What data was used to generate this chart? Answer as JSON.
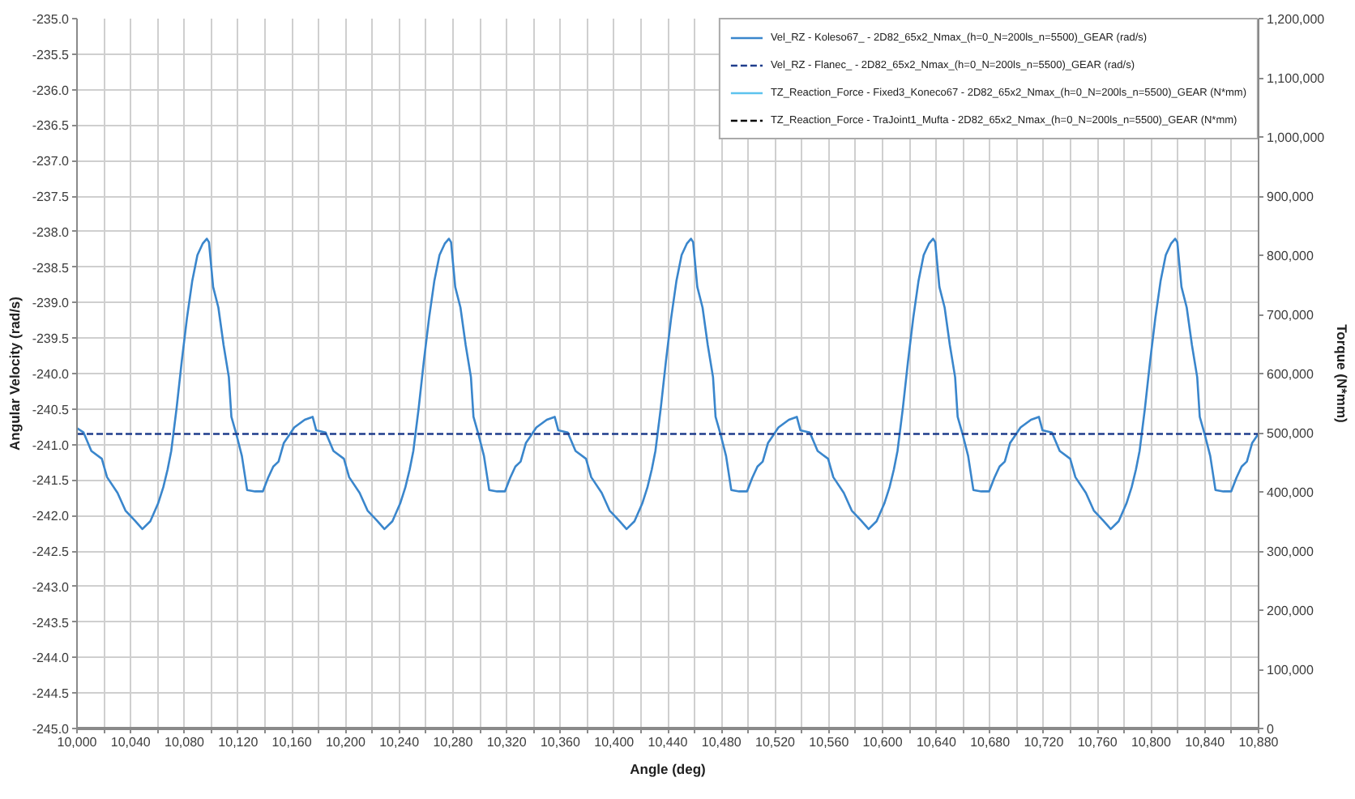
{
  "chart_data": {
    "type": "line",
    "xlabel": "Angle (deg)",
    "ylabel": "Angular Velocity (rad/s)",
    "y2label": "Torque (N*mm)",
    "xlim": [
      10000,
      10880
    ],
    "ylim": [
      -245,
      -235
    ],
    "y2lim": [
      0,
      1200000
    ],
    "xticks": [
      {
        "value": 10000,
        "label": "10,000"
      },
      {
        "value": 10020,
        "label": null
      },
      {
        "value": 10040,
        "label": "10,040"
      },
      {
        "value": 10060,
        "label": null
      },
      {
        "value": 10080,
        "label": "10,080"
      },
      {
        "value": 10100,
        "label": null
      },
      {
        "value": 10120,
        "label": "10,120"
      },
      {
        "value": 10140,
        "label": null
      },
      {
        "value": 10160,
        "label": "10,160"
      },
      {
        "value": 10180,
        "label": null
      },
      {
        "value": 10200,
        "label": "10,200"
      },
      {
        "value": 10220,
        "label": null
      },
      {
        "value": 10240,
        "label": "10,240"
      },
      {
        "value": 10260,
        "label": null
      },
      {
        "value": 10280,
        "label": "10,280"
      },
      {
        "value": 10300,
        "label": null
      },
      {
        "value": 10320,
        "label": "10,320"
      },
      {
        "value": 10340,
        "label": null
      },
      {
        "value": 10360,
        "label": "10,360"
      },
      {
        "value": 10380,
        "label": null
      },
      {
        "value": 10400,
        "label": "10,400"
      },
      {
        "value": 10420,
        "label": null
      },
      {
        "value": 10440,
        "label": "10,440"
      },
      {
        "value": 10460,
        "label": null
      },
      {
        "value": 10480,
        "label": "10,480"
      },
      {
        "value": 10500,
        "label": null
      },
      {
        "value": 10520,
        "label": "10,520"
      },
      {
        "value": 10540,
        "label": null
      },
      {
        "value": 10560,
        "label": "10,560"
      },
      {
        "value": 10580,
        "label": null
      },
      {
        "value": 10600,
        "label": "10,600"
      },
      {
        "value": 10620,
        "label": null
      },
      {
        "value": 10640,
        "label": "10,640"
      },
      {
        "value": 10660,
        "label": null
      },
      {
        "value": 10680,
        "label": "10,680"
      },
      {
        "value": 10700,
        "label": null
      },
      {
        "value": 10720,
        "label": "10,720"
      },
      {
        "value": 10740,
        "label": null
      },
      {
        "value": 10760,
        "label": "10,760"
      },
      {
        "value": 10780,
        "label": null
      },
      {
        "value": 10800,
        "label": "10,800"
      },
      {
        "value": 10820,
        "label": null
      },
      {
        "value": 10840,
        "label": "10,840"
      },
      {
        "value": 10860,
        "label": null
      },
      {
        "value": 10880,
        "label": "10,880"
      }
    ],
    "yticks": [
      {
        "value": -245,
        "label": "-245.0"
      },
      -244.5,
      {
        "value": -244,
        "label": "-244.0"
      },
      -243.5,
      {
        "value": -243,
        "label": "-243.0"
      },
      -242.5,
      {
        "value": -242,
        "label": "-242.0"
      },
      -241.5,
      {
        "value": -241,
        "label": "-241.0"
      },
      -240.5,
      {
        "value": -240,
        "label": "-240.0"
      },
      -239.5,
      {
        "value": -239,
        "label": "-239.0"
      },
      -238.5,
      {
        "value": -238,
        "label": "-238.0"
      },
      -237.5,
      {
        "value": -237,
        "label": "-237.0"
      },
      -236.5,
      {
        "value": -236,
        "label": "-236.0"
      },
      -235.5,
      {
        "value": -235,
        "label": "-235.0"
      }
    ],
    "y2ticks": [
      0,
      {
        "value": 100000,
        "label": "100,000"
      },
      {
        "value": 200000,
        "label": "200,000"
      },
      {
        "value": 300000,
        "label": "300,000"
      },
      {
        "value": 400000,
        "label": "400,000"
      },
      {
        "value": 500000,
        "label": "500,000"
      },
      {
        "value": 600000,
        "label": "600,000"
      },
      {
        "value": 700000,
        "label": "700,000"
      },
      {
        "value": 800000,
        "label": "800,000"
      },
      {
        "value": 900000,
        "label": "900,000"
      },
      {
        "value": 1000000,
        "label": "1,000,000"
      },
      {
        "value": 1100000,
        "label": "1,100,000"
      },
      {
        "value": 1200000,
        "label": "1,200,000"
      }
    ],
    "grid": true,
    "legend": "top right",
    "series": [
      {
        "name": "Vel_RZ - Koleso67_ - 2D82_65x2_Nmax_(h=0_N=200ls_n=5500)_GEAR (rad/s)",
        "color": "#3a86cc",
        "line_style": "solid",
        "x": [
          10000,
          10004.9,
          10010.7,
          10018.5,
          10022.4,
          10030.2,
          10036.1,
          10043.1,
          10048.7,
          10054.6,
          10060.4,
          10064.3,
          10067.5,
          10070.2,
          10074.1,
          10078.0,
          10081.9,
          10085.8,
          10089.7,
          10093.6,
          10096.7,
          10098.3,
          10101.4,
          10105.3,
          10109.2,
          10113.1,
          10115.0,
          10118.9,
          10122.8,
          10126.7,
          10132.6,
          10138.4,
          10142.3,
          10146.2,
          10150.1,
          10154.0,
          10157.9,
          10161.8,
          10169.6,
          10175.5,
          10178.2,
          10185.2,
          10191.0,
          10198.8,
          10202.7,
          10210.5,
          10216.4,
          10223.4,
          10229.0,
          10234.9,
          10240.7,
          10244.6,
          10247.8,
          10250.5,
          10254.4,
          10258.3,
          10262.2,
          10266.1,
          10270.0,
          10273.9,
          10277.0,
          10278.6,
          10281.7,
          10285.6,
          10289.5,
          10293.4,
          10295.3,
          10299.2,
          10303.1,
          10307.0,
          10312.9,
          10318.7,
          10322.6,
          10326.5,
          10330.4,
          10334.3,
          10338.2,
          10342.1,
          10349.9,
          10355.8,
          10358.5,
          10365.5,
          10371.3,
          10379.1,
          10383.0,
          10390.8,
          10396.7,
          10403.7,
          10409.3,
          10415.2,
          10421.0,
          10424.9,
          10428.1,
          10430.8,
          10434.7,
          10438.6,
          10442.5,
          10446.4,
          10450.3,
          10454.2,
          10457.3,
          10458.9,
          10462.0,
          10465.9,
          10469.8,
          10473.7,
          10475.6,
          10479.5,
          10483.4,
          10487.3,
          10493.2,
          10499.0,
          10502.9,
          10506.8,
          10510.7,
          10514.6,
          10518.5,
          10522.4,
          10530.2,
          10536.1,
          10538.8,
          10545.8,
          10551.6,
          10559.4,
          10563.3,
          10571.1,
          10577.0,
          10584.0,
          10589.6,
          10595.5,
          10601.3,
          10605.2,
          10608.4,
          10611.1,
          10615.0,
          10618.9,
          10622.8,
          10626.7,
          10630.6,
          10634.5,
          10637.6,
          10639.2,
          10642.3,
          10646.2,
          10650.1,
          10654.0,
          10655.9,
          10659.8,
          10663.7,
          10667.6,
          10673.5,
          10679.3,
          10683.2,
          10687.1,
          10691.0,
          10694.9,
          10698.8,
          10702.7,
          10710.5,
          10716.4,
          10719.1,
          10726.1,
          10731.9,
          10739.7,
          10743.6,
          10751.4,
          10757.3,
          10764.3,
          10769.9,
          10775.8,
          10781.6,
          10785.5,
          10788.7,
          10791.4,
          10795.3,
          10799.2,
          10803.1,
          10807.0,
          10810.9,
          10814.8,
          10817.9,
          10819.5,
          10822.6,
          10826.5,
          10830.4,
          10834.3,
          10836.2,
          10840.1,
          10844.0,
          10847.9,
          10853.8,
          10859.6,
          10863.5,
          10867.4,
          10871.3,
          10875.2,
          10879.1,
          10880
        ],
        "values": [
          -240.77,
          -240.83,
          -241.09,
          -241.2,
          -241.46,
          -241.68,
          -241.93,
          -242.07,
          -242.19,
          -242.08,
          -241.83,
          -241.6,
          -241.35,
          -241.09,
          -240.5,
          -239.83,
          -239.22,
          -238.7,
          -238.33,
          -238.17,
          -238.1,
          -238.15,
          -238.78,
          -239.07,
          -239.6,
          -240.05,
          -240.61,
          -240.87,
          -241.16,
          -241.64,
          -241.66,
          -241.66,
          -241.47,
          -241.31,
          -241.24,
          -240.98,
          -240.87,
          -240.76,
          -240.65,
          -240.61,
          -240.8,
          -240.83,
          -241.09,
          -241.2,
          -241.46,
          -241.68,
          -241.93,
          -242.07,
          -242.19,
          -242.08,
          -241.83,
          -241.6,
          -241.35,
          -241.09,
          -240.5,
          -239.83,
          -239.22,
          -238.7,
          -238.33,
          -238.17,
          -238.1,
          -238.15,
          -238.78,
          -239.07,
          -239.6,
          -240.05,
          -240.61,
          -240.87,
          -241.16,
          -241.64,
          -241.66,
          -241.66,
          -241.47,
          -241.31,
          -241.24,
          -240.98,
          -240.87,
          -240.76,
          -240.65,
          -240.61,
          -240.8,
          -240.83,
          -241.09,
          -241.2,
          -241.46,
          -241.68,
          -241.93,
          -242.07,
          -242.19,
          -242.08,
          -241.83,
          -241.6,
          -241.35,
          -241.09,
          -240.5,
          -239.83,
          -239.22,
          -238.7,
          -238.33,
          -238.17,
          -238.1,
          -238.15,
          -238.78,
          -239.07,
          -239.6,
          -240.05,
          -240.61,
          -240.87,
          -241.16,
          -241.64,
          -241.66,
          -241.66,
          -241.47,
          -241.31,
          -241.24,
          -240.98,
          -240.87,
          -240.76,
          -240.65,
          -240.61,
          -240.8,
          -240.83,
          -241.09,
          -241.2,
          -241.46,
          -241.68,
          -241.93,
          -242.07,
          -242.19,
          -242.08,
          -241.83,
          -241.6,
          -241.35,
          -241.09,
          -240.5,
          -239.83,
          -239.22,
          -238.7,
          -238.33,
          -238.17,
          -238.1,
          -238.15,
          -238.78,
          -239.07,
          -239.6,
          -240.05,
          -240.61,
          -240.87,
          -241.16,
          -241.64,
          -241.66,
          -241.66,
          -241.47,
          -241.31,
          -241.24,
          -240.98,
          -240.87,
          -240.76,
          -240.65,
          -240.61,
          -240.8,
          -240.83,
          -241.09,
          -241.2,
          -241.46,
          -241.68,
          -241.93,
          -242.07,
          -242.19,
          -242.08,
          -241.83,
          -241.6,
          -241.35,
          -241.09,
          -240.5,
          -239.83,
          -239.22,
          -238.7,
          -238.33,
          -238.17,
          -238.1,
          -238.15,
          -238.78,
          -239.07,
          -239.6,
          -240.05,
          -240.61,
          -240.87,
          -241.16,
          -241.64,
          -241.66,
          -241.66,
          -241.47,
          -241.31,
          -241.24,
          -240.98,
          -240.87,
          -240.85
        ]
      },
      {
        "name": "Vel_RZ - Flanec_ - 2D82_65x2_Nmax_(h=0_N=200ls_n=5500)_GEAR (rad/s)",
        "color": "#1f3d8c",
        "line_style": "dashed",
        "x": [
          10000,
          10880
        ],
        "values": [
          -240.85,
          -240.85
        ]
      },
      {
        "name": "TZ_Reaction_Force - Fixed3_Koneco67 - 2D82_65x2_Nmax_(h=0_N=200ls_n=5500)_GEAR (N*mm)",
        "color": "#5cc3ee",
        "line_style": "solid"
      },
      {
        "name": "TZ_Reaction_Force - TraJoint1_Mufta - 2D82_65x2_Nmax_(h=0_N=200ls_n=5500)_GEAR (N*mm)",
        "color": "#000000",
        "line_style": "dashed"
      }
    ]
  }
}
